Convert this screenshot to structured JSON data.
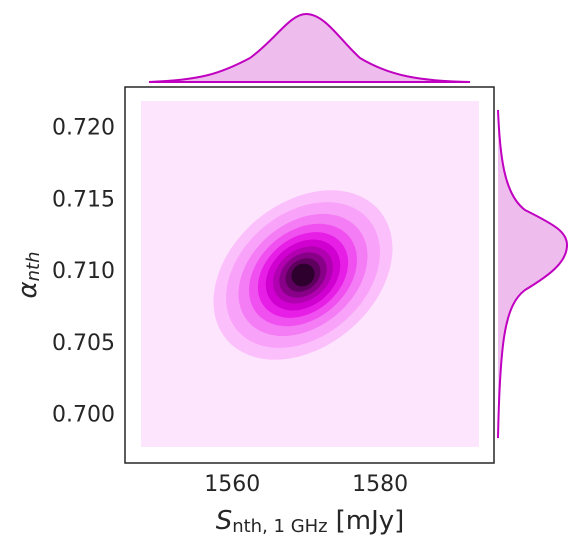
{
  "chart_data": {
    "type": "kde",
    "x_label": {
      "symbol": "S",
      "subscript": "nth, 1 GHz",
      "unit": "[mJy]"
    },
    "y_label": {
      "symbol": "α",
      "subscript": "nth"
    },
    "xlim": [
      1545.5,
      1595.4
    ],
    "xticks": [
      1560,
      1580
    ],
    "ylim": [
      0.6967,
      0.7229
    ],
    "yticks": [
      {
        "value": 0.7,
        "label": "0.700"
      },
      0.705,
      {
        "value": 0.71,
        "label": "0.710"
      },
      0.715,
      {
        "value": 0.72,
        "label": "0.720"
      }
    ],
    "color": "#c000c0"
  }
}
